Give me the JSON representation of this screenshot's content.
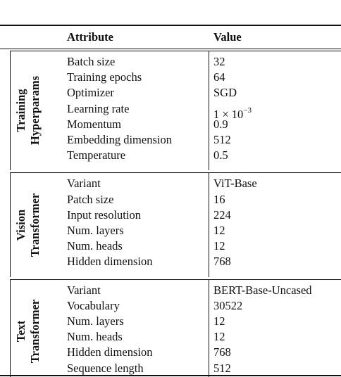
{
  "table": {
    "header": [
      "Attribute",
      "Value"
    ],
    "groups": [
      {
        "label": [
          "Training",
          "Hyperparams"
        ],
        "rows": [
          [
            "Batch size",
            "32"
          ],
          [
            "Training epochs",
            "64"
          ],
          [
            "Optimizer",
            "SGD"
          ],
          [
            "Learning rate",
            {
              "base": "1 × 10",
              "exponent": "−3"
            }
          ],
          [
            "Momentum",
            "0.9"
          ],
          [
            "Embedding dimension",
            "512"
          ],
          [
            "Temperature",
            "0.5"
          ]
        ]
      },
      {
        "label": [
          "Vision",
          "Transformer"
        ],
        "rows": [
          [
            "Variant",
            "ViT-Base"
          ],
          [
            "Patch size",
            "16"
          ],
          [
            "Input resolution",
            "224"
          ],
          [
            "Num. layers",
            "12"
          ],
          [
            "Num. heads",
            "12"
          ],
          [
            "Hidden dimension",
            "768"
          ]
        ]
      },
      {
        "label": [
          "Text",
          "Transformer"
        ],
        "rows": [
          [
            "Variant",
            "BERT-Base-Uncased"
          ],
          [
            "Vocabulary",
            "30522"
          ],
          [
            "Num. layers",
            "12"
          ],
          [
            "Num. heads",
            "12"
          ],
          [
            "Hidden dimension",
            "768"
          ],
          [
            "Sequence length",
            "512"
          ]
        ]
      }
    ]
  }
}
